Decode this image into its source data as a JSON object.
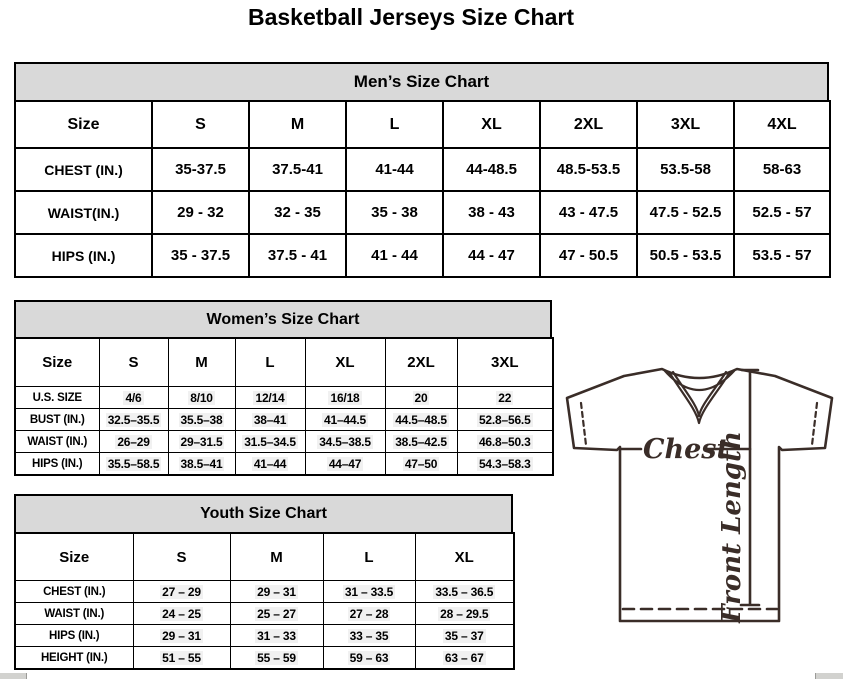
{
  "page": {
    "title": "Basketball Jerseys Size Chart"
  },
  "tables": {
    "men": {
      "title": "Men’s Size Chart",
      "header": [
        "Size",
        "S",
        "M",
        "L",
        "XL",
        "2XL",
        "3XL",
        "4XL"
      ],
      "rows": [
        {
          "label": "CHEST (IN.)",
          "values": [
            "35-37.5",
            "37.5-41",
            "41-44",
            "44-48.5",
            "48.5-53.5",
            "53.5-58",
            "58-63"
          ]
        },
        {
          "label": "WAIST(IN.)",
          "values": [
            "29 - 32",
            "32 - 35",
            "35 - 38",
            "38 - 43",
            "43 - 47.5",
            "47.5 - 52.5",
            "52.5 - 57"
          ]
        },
        {
          "label": "HIPS (IN.)",
          "values": [
            "35 - 37.5",
            "37.5 - 41",
            "41 - 44",
            "44 - 47",
            "47 - 50.5",
            "50.5 - 53.5",
            "53.5 - 57"
          ]
        }
      ]
    },
    "women": {
      "title": "Women’s Size Chart",
      "header": [
        "Size",
        "S",
        "M",
        "L",
        "XL",
        "2XL",
        "3XL"
      ],
      "rows": [
        {
          "label": "U.S. SIZE",
          "values": [
            "4/6",
            "8/10",
            "12/14",
            "16/18",
            "20",
            "22"
          ]
        },
        {
          "label": "BUST (IN.)",
          "values": [
            "32.5–35.5",
            "35.5–38",
            "38–41",
            "41–44.5",
            "44.5–48.5",
            "52.8–56.5"
          ]
        },
        {
          "label": "WAIST (IN.)",
          "values": [
            "26–29",
            "29–31.5",
            "31.5–34.5",
            "34.5–38.5",
            "38.5–42.5",
            "46.8–50.3"
          ]
        },
        {
          "label": "HIPS (IN.)",
          "values": [
            "35.5–58.5",
            "38.5–41",
            "41–44",
            "44–47",
            "47–50",
            "54.3–58.3"
          ]
        }
      ]
    },
    "youth": {
      "title": "Youth Size Chart",
      "header": [
        "Size",
        "S",
        "M",
        "L",
        "XL"
      ],
      "rows": [
        {
          "label": "CHEST (IN.)",
          "values": [
            "27 – 29",
            "29 – 31",
            "31 – 33.5",
            "33.5 – 36.5"
          ]
        },
        {
          "label": "WAIST (IN.)",
          "values": [
            "24 – 25",
            "25 – 27",
            "27 – 28",
            "28 – 29.5"
          ]
        },
        {
          "label": "HIPS (IN.)",
          "values": [
            "29 – 31",
            "31 – 33",
            "33 – 35",
            "35 – 37"
          ]
        },
        {
          "label": "HEIGHT (IN.)",
          "values": [
            "51 – 55",
            "55 – 59",
            "59 – 63",
            "63 – 67"
          ]
        }
      ]
    }
  },
  "diagram": {
    "chest_label": "Chest",
    "front_length_label": "Front Length"
  },
  "colors": {
    "table_header_bg": "#d9d9d9",
    "table_border": "#000000",
    "diagram_line": "#3a2d28",
    "scrollbar": "#d2d2cf"
  }
}
